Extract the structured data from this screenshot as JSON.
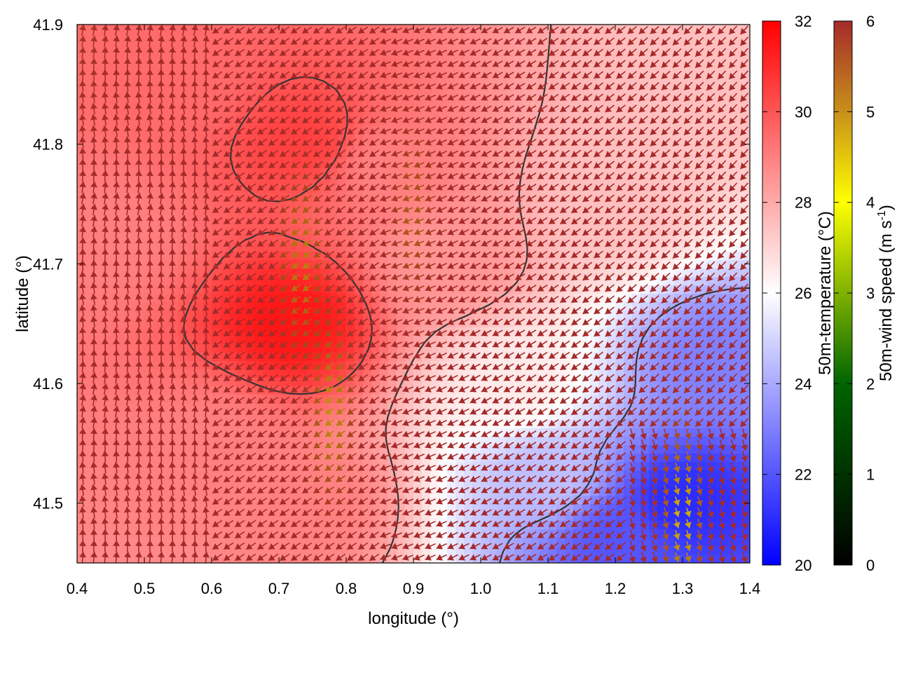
{
  "chart_data": {
    "type": "heatmap",
    "title": "",
    "xlabel": "longitude (°)",
    "ylabel": "latitude (°)",
    "xlim": [
      0.4,
      1.4
    ],
    "ylim": [
      41.45,
      41.9
    ],
    "x_ticks": [
      "0.4",
      "0.5",
      "0.6",
      "0.7",
      "0.8",
      "0.9",
      "1.0",
      "1.1",
      "1.2",
      "1.3",
      "1.4"
    ],
    "x_tick_values": [
      0.4,
      0.5,
      0.6,
      0.7,
      0.8,
      0.9,
      1.0,
      1.1,
      1.2,
      1.3,
      1.4
    ],
    "y_ticks": [
      "41.5",
      "41.6",
      "41.7",
      "41.8",
      "41.9"
    ],
    "y_tick_values": [
      41.5,
      41.6,
      41.7,
      41.8,
      41.9
    ],
    "temperature_colorbar": {
      "label": "50m-temperature (°C)",
      "range": [
        20,
        32
      ],
      "ticks": [
        "20",
        "22",
        "24",
        "26",
        "28",
        "30",
        "32"
      ],
      "tick_values": [
        20,
        22,
        24,
        26,
        28,
        30,
        32
      ],
      "colors": [
        "#0000ff",
        "#ffffff",
        "#ff0000"
      ]
    },
    "wind_colorbar": {
      "label_main": "50m-wind speed (m s",
      "label_sup": "-1",
      "label_end": ")",
      "range": [
        0,
        6
      ],
      "ticks": [
        "0",
        "1",
        "2",
        "3",
        "4",
        "5",
        "6"
      ],
      "tick_values": [
        0,
        1,
        2,
        3,
        4,
        5,
        6
      ],
      "colors": [
        "#000000",
        "#006400",
        "#ffff00",
        "#b8860b",
        "#a52a2a"
      ]
    },
    "temperature_features": [
      {
        "lon": 0.45,
        "lat": 41.72,
        "temp": 29.0
      },
      {
        "lon": 0.55,
        "lat": 41.85,
        "temp": 29.5
      },
      {
        "lon": 0.72,
        "lat": 41.65,
        "temp": 31.5
      },
      {
        "lon": 0.74,
        "lat": 41.8,
        "temp": 30.5
      },
      {
        "lon": 0.6,
        "lat": 41.55,
        "temp": 29.0
      },
      {
        "lon": 0.85,
        "lat": 41.78,
        "temp": 29.0
      },
      {
        "lon": 0.95,
        "lat": 41.7,
        "temp": 28.5
      },
      {
        "lon": 0.75,
        "lat": 41.5,
        "temp": 29.0
      },
      {
        "lon": 1.05,
        "lat": 41.6,
        "temp": 26.5
      },
      {
        "lon": 1.2,
        "lat": 41.75,
        "temp": 27.5
      },
      {
        "lon": 1.35,
        "lat": 41.85,
        "temp": 27.5
      },
      {
        "lon": 1.3,
        "lat": 41.5,
        "temp": 21.0
      },
      {
        "lon": 1.2,
        "lat": 41.47,
        "temp": 22.0
      },
      {
        "lon": 1.35,
        "lat": 41.62,
        "temp": 23.0
      },
      {
        "lon": 1.1,
        "lat": 41.52,
        "temp": 24.5
      }
    ],
    "wind_features": [
      {
        "lon": 0.735,
        "lat": 41.7,
        "speed": 4.5
      },
      {
        "lon": 0.78,
        "lat": 41.58,
        "speed": 4.3
      },
      {
        "lon": 0.9,
        "lat": 41.74,
        "speed": 5.2
      },
      {
        "lon": 1.3,
        "lat": 41.49,
        "speed": 3.8
      },
      {
        "lon": 0.42,
        "lat": 41.88,
        "speed": 5.8
      }
    ],
    "grid": false
  }
}
